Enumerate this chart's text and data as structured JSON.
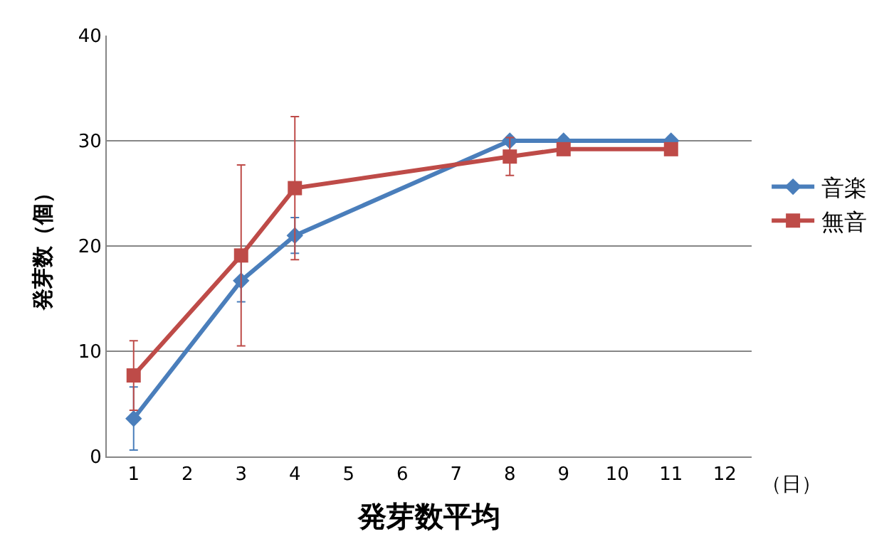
{
  "chart_data": {
    "type": "line",
    "xlabel": "発芽数平均",
    "ylabel": "発芽数（個）",
    "annotations": [
      "（日）"
    ],
    "xlim": [
      0.5,
      12.5
    ],
    "xticks": [
      1,
      2,
      3,
      4,
      5,
      6,
      7,
      8,
      9,
      10,
      11,
      12
    ],
    "ylim": [
      0,
      40
    ],
    "yticks": [
      0,
      10,
      20,
      30,
      40
    ],
    "grid": "y",
    "legend": "right",
    "line_style": "solid",
    "series": [
      {
        "name": "音楽",
        "color": "#4a7ebb",
        "marker": "diamond",
        "x": [
          1,
          3,
          4,
          8,
          9,
          11
        ],
        "values": [
          3.6,
          16.7,
          21,
          30,
          30,
          30
        ],
        "errors": [
          3,
          2,
          1.7,
          null,
          null,
          null
        ]
      },
      {
        "name": "無音",
        "color": "#be4b48",
        "marker": "square",
        "x": [
          1,
          3,
          4,
          8,
          9,
          11
        ],
        "values": [
          7.7,
          19.1,
          25.5,
          28.5,
          29.2,
          29.2
        ],
        "errors": [
          3.3,
          8.6,
          6.8,
          1.8,
          null,
          null
        ]
      }
    ]
  }
}
